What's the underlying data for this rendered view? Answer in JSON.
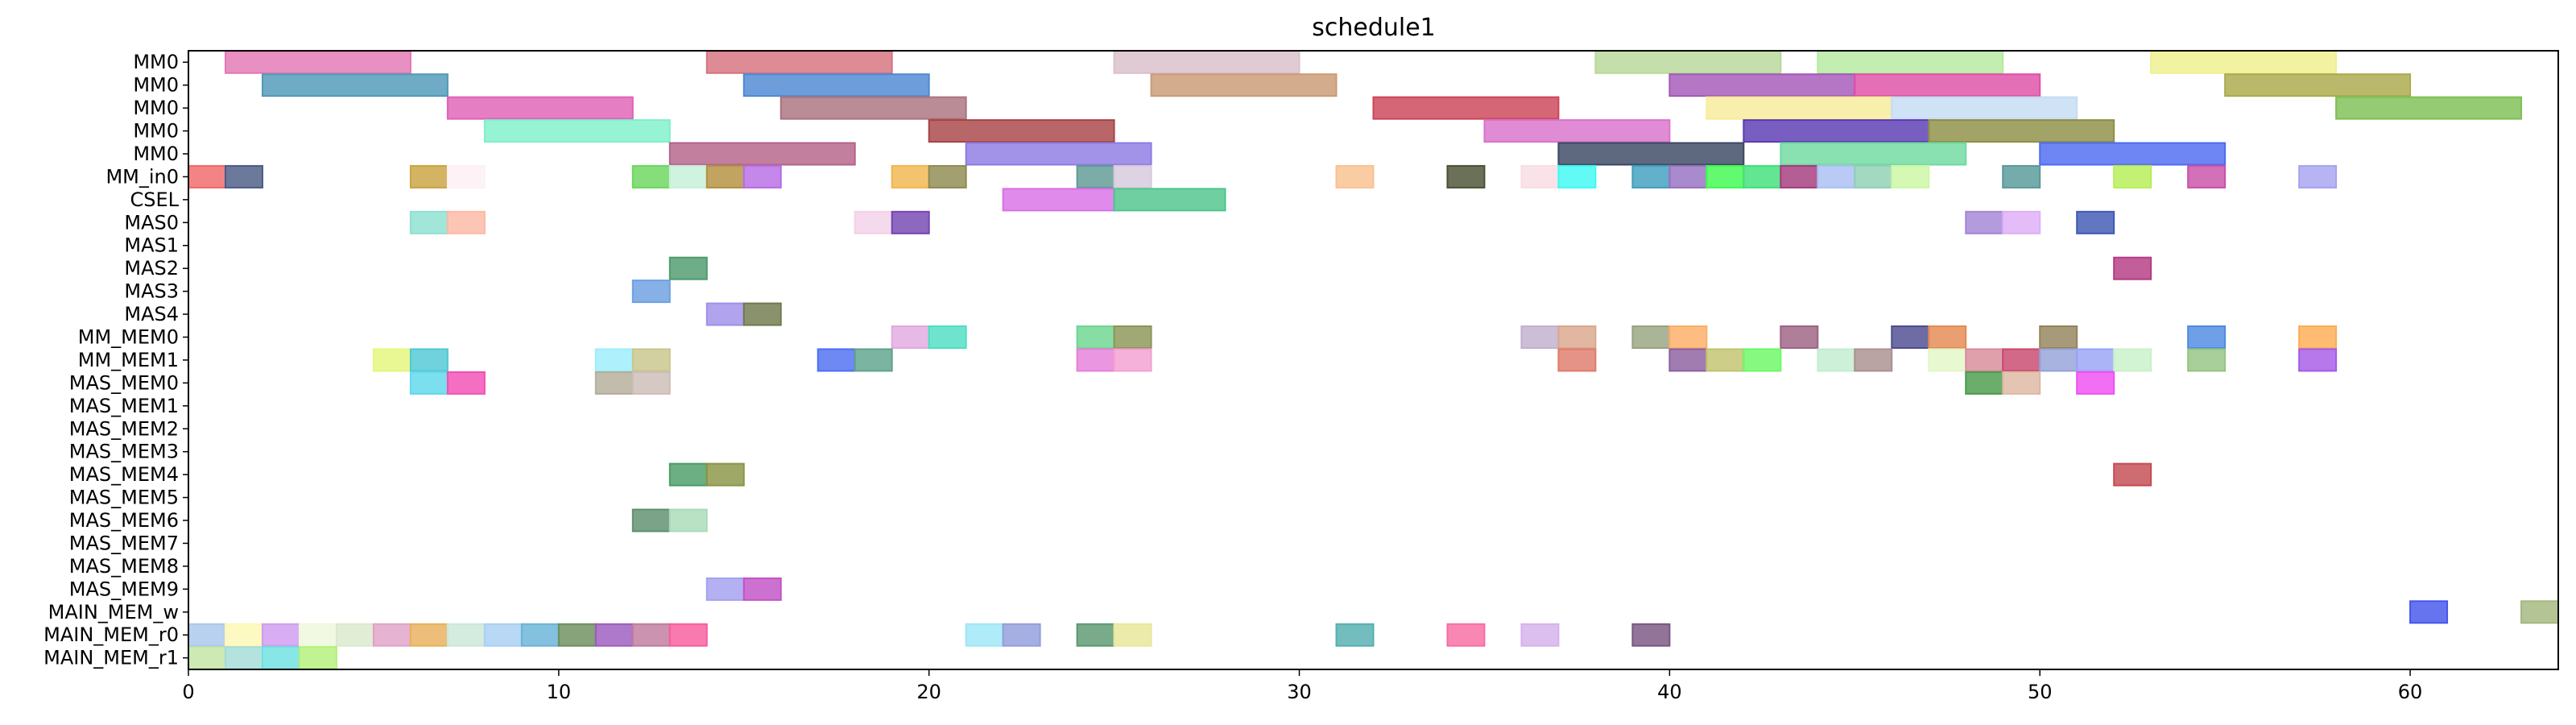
{
  "chart_data": {
    "type": "gantt",
    "title": "schedule1",
    "xlabel": "",
    "ylabel": "",
    "xlim": [
      0,
      64
    ],
    "xticks": [
      0,
      10,
      20,
      30,
      40,
      50,
      60
    ],
    "xtick_labels": [
      "0",
      "10",
      "20",
      "30",
      "40",
      "50",
      "60"
    ],
    "grid": false,
    "rows": [
      "MM0",
      "MM0",
      "MM0",
      "MM0",
      "MM0",
      "MM_in0",
      "CSEL",
      "MAS0",
      "MAS1",
      "MAS2",
      "MAS3",
      "MAS4",
      "MM_MEM0",
      "MM_MEM1",
      "MAS_MEM0",
      "MAS_MEM1",
      "MAS_MEM2",
      "MAS_MEM3",
      "MAS_MEM4",
      "MAS_MEM5",
      "MAS_MEM6",
      "MAS_MEM7",
      "MAS_MEM8",
      "MAS_MEM9",
      "MAIN_MEM_w",
      "MAIN_MEM_r0",
      "MAIN_MEM_r1"
    ],
    "tasks": [
      {
        "row": 0,
        "start": 1,
        "end": 6,
        "color": "#e377b3"
      },
      {
        "row": 0,
        "start": 14,
        "end": 19,
        "color": "#d5737f"
      },
      {
        "row": 0,
        "start": 25,
        "end": 30,
        "color": "#d9bfcc"
      },
      {
        "row": 0,
        "start": 38,
        "end": 43,
        "color": "#b7d89a"
      },
      {
        "row": 0,
        "start": 44,
        "end": 49,
        "color": "#b4eaa0"
      },
      {
        "row": 0,
        "start": 53,
        "end": 58,
        "color": "#eef08e"
      },
      {
        "row": 1,
        "start": 2,
        "end": 7,
        "color": "#4f99b8"
      },
      {
        "row": 1,
        "start": 15,
        "end": 20,
        "color": "#4d89d3"
      },
      {
        "row": 1,
        "start": 26,
        "end": 31,
        "color": "#c99a74"
      },
      {
        "row": 1,
        "start": 40,
        "end": 45,
        "color": "#a458b8"
      },
      {
        "row": 1,
        "start": 45,
        "end": 50,
        "color": "#de4fa6"
      },
      {
        "row": 1,
        "start": 55,
        "end": 60,
        "color": "#abaa4b"
      },
      {
        "row": 2,
        "start": 7,
        "end": 12,
        "color": "#e062b7"
      },
      {
        "row": 2,
        "start": 16,
        "end": 21,
        "color": "#a9737f"
      },
      {
        "row": 2,
        "start": 32,
        "end": 37,
        "color": "#cc4458"
      },
      {
        "row": 2,
        "start": 41,
        "end": 46,
        "color": "#f7ec9a"
      },
      {
        "row": 2,
        "start": 46,
        "end": 51,
        "color": "#c4dcf4"
      },
      {
        "row": 2,
        "start": 58,
        "end": 63,
        "color": "#7ec054"
      },
      {
        "row": 3,
        "start": 8,
        "end": 13,
        "color": "#7ff0c9"
      },
      {
        "row": 3,
        "start": 20,
        "end": 25,
        "color": "#a84446"
      },
      {
        "row": 3,
        "start": 35,
        "end": 40,
        "color": "#d973cb"
      },
      {
        "row": 3,
        "start": 42,
        "end": 47,
        "color": "#5c3bb3"
      },
      {
        "row": 3,
        "start": 47,
        "end": 52,
        "color": "#8e8f45"
      },
      {
        "row": 4,
        "start": 13,
        "end": 18,
        "color": "#b46389"
      },
      {
        "row": 4,
        "start": 21,
        "end": 26,
        "color": "#8d7be3"
      },
      {
        "row": 4,
        "start": 37,
        "end": 42,
        "color": "#3b4763"
      },
      {
        "row": 4,
        "start": 43,
        "end": 48,
        "color": "#6fd9a0"
      },
      {
        "row": 4,
        "start": 50,
        "end": 55,
        "color": "#4d6bf0"
      },
      {
        "row": 5,
        "start": 0,
        "end": 1,
        "color": "#f0686a"
      },
      {
        "row": 5,
        "start": 1,
        "end": 2,
        "color": "#4a5b85"
      },
      {
        "row": 5,
        "start": 6,
        "end": 7,
        "color": "#c9a43f"
      },
      {
        "row": 5,
        "start": 7,
        "end": 8,
        "color": "#fdf0f4"
      },
      {
        "row": 5,
        "start": 12,
        "end": 13,
        "color": "#6ad75c"
      },
      {
        "row": 5,
        "start": 13,
        "end": 14,
        "color": "#c6f0d8"
      },
      {
        "row": 5,
        "start": 14,
        "end": 15,
        "color": "#b59040"
      },
      {
        "row": 5,
        "start": 15,
        "end": 16,
        "color": "#b76ce5"
      },
      {
        "row": 5,
        "start": 19,
        "end": 20,
        "color": "#f2b64e"
      },
      {
        "row": 5,
        "start": 20,
        "end": 21,
        "color": "#8e8a52"
      },
      {
        "row": 5,
        "start": 24,
        "end": 25,
        "color": "#5f9a95"
      },
      {
        "row": 5,
        "start": 25,
        "end": 26,
        "color": "#d7c9dc"
      },
      {
        "row": 5,
        "start": 31,
        "end": 32,
        "color": "#f9c190"
      },
      {
        "row": 5,
        "start": 34,
        "end": 35,
        "color": "#4a5133"
      },
      {
        "row": 5,
        "start": 36,
        "end": 37,
        "color": "#f8dde4"
      },
      {
        "row": 5,
        "start": 37,
        "end": 38,
        "color": "#3ff9f2"
      },
      {
        "row": 5,
        "start": 39,
        "end": 40,
        "color": "#3f9fbd"
      },
      {
        "row": 5,
        "start": 40,
        "end": 41,
        "color": "#9670c1"
      },
      {
        "row": 5,
        "start": 41,
        "end": 42,
        "color": "#3ff94e"
      },
      {
        "row": 5,
        "start": 42,
        "end": 43,
        "color": "#3fe07a"
      },
      {
        "row": 5,
        "start": 43,
        "end": 44,
        "color": "#a33b7b"
      },
      {
        "row": 5,
        "start": 44,
        "end": 45,
        "color": "#a9c0f3"
      },
      {
        "row": 5,
        "start": 45,
        "end": 46,
        "color": "#8fd0b3"
      },
      {
        "row": 5,
        "start": 46,
        "end": 47,
        "color": "#ccf7a4"
      },
      {
        "row": 5,
        "start": 49,
        "end": 50,
        "color": "#58999a"
      },
      {
        "row": 5,
        "start": 52,
        "end": 53,
        "color": "#b6ee56"
      },
      {
        "row": 5,
        "start": 54,
        "end": 55,
        "color": "#c951a8"
      },
      {
        "row": 5,
        "start": 57,
        "end": 58,
        "color": "#a6a4ef"
      },
      {
        "row": 6,
        "start": 22,
        "end": 25,
        "color": "#d970e6"
      },
      {
        "row": 6,
        "start": 25,
        "end": 28,
        "color": "#4fc58c"
      },
      {
        "row": 7,
        "start": 6,
        "end": 7,
        "color": "#8ee0d2"
      },
      {
        "row": 7,
        "start": 7,
        "end": 8,
        "color": "#fdb8a4"
      },
      {
        "row": 7,
        "start": 18,
        "end": 19,
        "color": "#f3d1e8"
      },
      {
        "row": 7,
        "start": 19,
        "end": 20,
        "color": "#7445b2"
      },
      {
        "row": 7,
        "start": 48,
        "end": 49,
        "color": "#a485d6"
      },
      {
        "row": 7,
        "start": 49,
        "end": 50,
        "color": "#deaff7"
      },
      {
        "row": 7,
        "start": 51,
        "end": 52,
        "color": "#3e59b5"
      },
      {
        "row": 9,
        "start": 13,
        "end": 14,
        "color": "#4e9b6c"
      },
      {
        "row": 9,
        "start": 52,
        "end": 53,
        "color": "#b43b83"
      },
      {
        "row": 10,
        "start": 12,
        "end": 13,
        "color": "#6ca0e0"
      },
      {
        "row": 11,
        "start": 14,
        "end": 15,
        "color": "#a18fea"
      },
      {
        "row": 11,
        "start": 15,
        "end": 16,
        "color": "#6f7a4d"
      },
      {
        "row": 12,
        "start": 19,
        "end": 20,
        "color": "#e0a9e1"
      },
      {
        "row": 12,
        "start": 20,
        "end": 21,
        "color": "#4fdec2"
      },
      {
        "row": 12,
        "start": 24,
        "end": 25,
        "color": "#6ed690"
      },
      {
        "row": 12,
        "start": 25,
        "end": 26,
        "color": "#8b9657"
      },
      {
        "row": 12,
        "start": 36,
        "end": 37,
        "color": "#c0b0cd"
      },
      {
        "row": 12,
        "start": 37,
        "end": 38,
        "color": "#dba78e"
      },
      {
        "row": 12,
        "start": 39,
        "end": 40,
        "color": "#97a380"
      },
      {
        "row": 12,
        "start": 40,
        "end": 41,
        "color": "#fcae66"
      },
      {
        "row": 12,
        "start": 43,
        "end": 44,
        "color": "#9d6282"
      },
      {
        "row": 12,
        "start": 46,
        "end": 47,
        "color": "#4d4c90"
      },
      {
        "row": 12,
        "start": 47,
        "end": 48,
        "color": "#e48a52"
      },
      {
        "row": 12,
        "start": 50,
        "end": 51,
        "color": "#94845b"
      },
      {
        "row": 12,
        "start": 54,
        "end": 55,
        "color": "#4d8be2"
      },
      {
        "row": 12,
        "start": 57,
        "end": 58,
        "color": "#fdad53"
      },
      {
        "row": 13,
        "start": 5,
        "end": 6,
        "color": "#e4f77a"
      },
      {
        "row": 13,
        "start": 6,
        "end": 7,
        "color": "#50c8d4"
      },
      {
        "row": 13,
        "start": 11,
        "end": 12,
        "color": "#9ceefc"
      },
      {
        "row": 13,
        "start": 12,
        "end": 13,
        "color": "#c8c68b"
      },
      {
        "row": 13,
        "start": 17,
        "end": 18,
        "color": "#4e6ef1"
      },
      {
        "row": 13,
        "start": 18,
        "end": 19,
        "color": "#5ea38c"
      },
      {
        "row": 13,
        "start": 24,
        "end": 25,
        "color": "#e67fd9"
      },
      {
        "row": 13,
        "start": 25,
        "end": 26,
        "color": "#f3a0d2"
      },
      {
        "row": 13,
        "start": 37,
        "end": 38,
        "color": "#df7b6b"
      },
      {
        "row": 13,
        "start": 40,
        "end": 41,
        "color": "#8b5fa0"
      },
      {
        "row": 13,
        "start": 41,
        "end": 42,
        "color": "#c2c36c"
      },
      {
        "row": 13,
        "start": 42,
        "end": 43,
        "color": "#6bf964"
      },
      {
        "row": 13,
        "start": 44,
        "end": 45,
        "color": "#c2edd0"
      },
      {
        "row": 13,
        "start": 45,
        "end": 46,
        "color": "#aa908f"
      },
      {
        "row": 13,
        "start": 47,
        "end": 48,
        "color": "#e3f7c6"
      },
      {
        "row": 13,
        "start": 48,
        "end": 49,
        "color": "#d88b99"
      },
      {
        "row": 13,
        "start": 49,
        "end": 50,
        "color": "#c9486e"
      },
      {
        "row": 13,
        "start": 50,
        "end": 51,
        "color": "#96a2d8"
      },
      {
        "row": 13,
        "start": 51,
        "end": 52,
        "color": "#9aa3f7"
      },
      {
        "row": 13,
        "start": 52,
        "end": 53,
        "color": "#c9f1c8"
      },
      {
        "row": 13,
        "start": 54,
        "end": 55,
        "color": "#95c483"
      },
      {
        "row": 13,
        "start": 57,
        "end": 58,
        "color": "#a65ae6"
      },
      {
        "row": 14,
        "start": 6,
        "end": 7,
        "color": "#5fd8ed"
      },
      {
        "row": 14,
        "start": 7,
        "end": 8,
        "color": "#f24fb3"
      },
      {
        "row": 14,
        "start": 11,
        "end": 12,
        "color": "#b3ad98"
      },
      {
        "row": 14,
        "start": 12,
        "end": 13,
        "color": "#cdbdb6"
      },
      {
        "row": 14,
        "start": 48,
        "end": 49,
        "color": "#4a9b4b"
      },
      {
        "row": 14,
        "start": 49,
        "end": 50,
        "color": "#deb8a3"
      },
      {
        "row": 14,
        "start": 51,
        "end": 52,
        "color": "#ef4ff2"
      },
      {
        "row": 18,
        "start": 13,
        "end": 14,
        "color": "#4a9d67"
      },
      {
        "row": 18,
        "start": 14,
        "end": 15,
        "color": "#8a9544"
      },
      {
        "row": 18,
        "start": 52,
        "end": 53,
        "color": "#c54c52"
      },
      {
        "row": 20,
        "start": 12,
        "end": 13,
        "color": "#5e8f6e"
      },
      {
        "row": 20,
        "start": 13,
        "end": 14,
        "color": "#a9dcb8"
      },
      {
        "row": 23,
        "start": 14,
        "end": 15,
        "color": "#a4a0f0"
      },
      {
        "row": 23,
        "start": 15,
        "end": 16,
        "color": "#c252c7"
      },
      {
        "row": 24,
        "start": 60,
        "end": 61,
        "color": "#4555ec"
      },
      {
        "row": 24,
        "start": 63,
        "end": 64,
        "color": "#a5b77d"
      },
      {
        "row": 25,
        "start": 0,
        "end": 1,
        "color": "#a8c7ec"
      },
      {
        "row": 25,
        "start": 1,
        "end": 2,
        "color": "#fdf8b4"
      },
      {
        "row": 25,
        "start": 2,
        "end": 3,
        "color": "#cf9bf0"
      },
      {
        "row": 25,
        "start": 3,
        "end": 4,
        "color": "#eef8dc"
      },
      {
        "row": 25,
        "start": 4,
        "end": 5,
        "color": "#dbe9cc"
      },
      {
        "row": 25,
        "start": 5,
        "end": 6,
        "color": "#e0a2c8"
      },
      {
        "row": 25,
        "start": 6,
        "end": 7,
        "color": "#e8b05c"
      },
      {
        "row": 25,
        "start": 7,
        "end": 8,
        "color": "#cbe7d8"
      },
      {
        "row": 25,
        "start": 8,
        "end": 9,
        "color": "#a8cff3"
      },
      {
        "row": 25,
        "start": 9,
        "end": 10,
        "color": "#69b3d7"
      },
      {
        "row": 25,
        "start": 10,
        "end": 11,
        "color": "#6c8f5b"
      },
      {
        "row": 25,
        "start": 11,
        "end": 12,
        "color": "#9c5cbe"
      },
      {
        "row": 25,
        "start": 12,
        "end": 13,
        "color": "#c07b9d"
      },
      {
        "row": 25,
        "start": 13,
        "end": 14,
        "color": "#f65d9e"
      },
      {
        "row": 25,
        "start": 21,
        "end": 22,
        "color": "#9de6f6"
      },
      {
        "row": 25,
        "start": 22,
        "end": 23,
        "color": "#939ddb"
      },
      {
        "row": 25,
        "start": 24,
        "end": 25,
        "color": "#5b9870"
      },
      {
        "row": 25,
        "start": 25,
        "end": 26,
        "color": "#e9e69a"
      },
      {
        "row": 25,
        "start": 31,
        "end": 32,
        "color": "#55aeb0"
      },
      {
        "row": 25,
        "start": 34,
        "end": 35,
        "color": "#f76da4"
      },
      {
        "row": 25,
        "start": 36,
        "end": 37,
        "color": "#d6b1ec"
      },
      {
        "row": 25,
        "start": 39,
        "end": 40,
        "color": "#7a5583"
      },
      {
        "row": 26,
        "start": 0,
        "end": 1,
        "color": "#c2e4a4"
      },
      {
        "row": 26,
        "start": 1,
        "end": 2,
        "color": "#a3dcd8"
      },
      {
        "row": 26,
        "start": 2,
        "end": 3,
        "color": "#6fe1e1"
      },
      {
        "row": 26,
        "start": 3,
        "end": 4,
        "color": "#b4f07a"
      }
    ]
  }
}
